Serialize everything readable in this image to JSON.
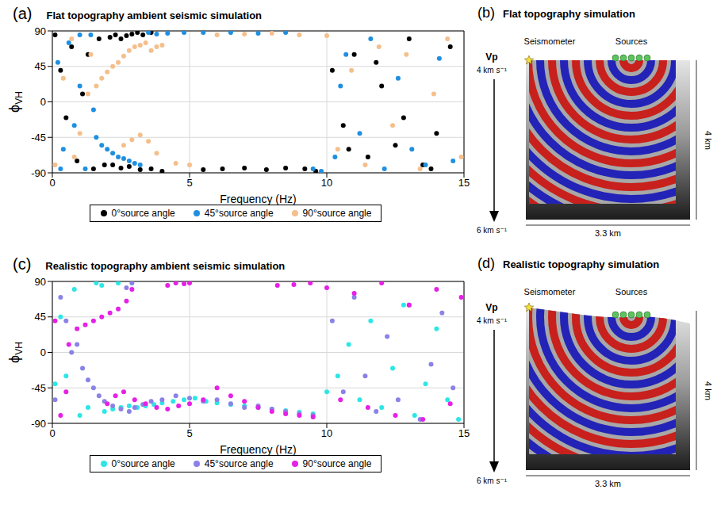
{
  "chart_data": [
    {
      "type": "scatter",
      "panel_label": "(a)",
      "title": "Flat topography ambient seismic simulation",
      "x_label": "Frequency (Hz)",
      "y_label": "ϕ",
      "y_label_subscript": "VH",
      "xlim": [
        0,
        15
      ],
      "xticks": [
        0,
        5,
        10,
        15
      ],
      "ylim": [
        -90,
        90
      ],
      "yticks": [
        -90,
        -45,
        0,
        45,
        90
      ],
      "grid": true,
      "legend": "bottom",
      "series": [
        {
          "name": "0°source angle",
          "color": "#000000",
          "marker": "circle",
          "x": [
            0.1,
            0.3,
            0.5,
            0.7,
            0.9,
            1.1,
            1.3,
            1.5,
            1.7,
            1.9,
            2.1,
            2.3,
            2.5,
            2.7,
            2.9,
            3.1,
            3.3,
            3.6,
            2.2,
            2.5,
            2.8,
            3.2,
            3.6,
            4.0,
            5.5,
            6.2,
            7.0,
            7.8,
            8.5,
            9.2,
            9.6,
            10.2,
            10.6,
            11.0,
            11.5,
            12.0,
            12.5,
            13.0,
            13.5,
            14.0,
            14.5,
            10.8,
            11.8,
            12.8,
            13.8
          ],
          "y": [
            85,
            40,
            -20,
            70,
            -75,
            10,
            60,
            -85,
            80,
            -80,
            82,
            85,
            80,
            84,
            86,
            88,
            85,
            88,
            -80,
            -84,
            -82,
            -86,
            -85,
            -88,
            -86,
            -85,
            -84,
            -86,
            -84,
            -85,
            -88,
            40,
            -30,
            60,
            -70,
            20,
            -55,
            80,
            -80,
            -40,
            70,
            -60,
            50,
            -20,
            -85
          ]
        },
        {
          "name": "45°source angle",
          "color": "#1f8fe0",
          "marker": "circle",
          "x": [
            0.2,
            0.4,
            0.6,
            0.8,
            1.0,
            1.2,
            1.4,
            1.6,
            1.8,
            2.0,
            2.2,
            2.4,
            2.6,
            2.8,
            3.0,
            3.2,
            3.5,
            3.8,
            4.2,
            4.8,
            5.5,
            6.5,
            7.5,
            8.5,
            9.5,
            9.8,
            10.3,
            10.7,
            11.2,
            11.6,
            12.1,
            12.6,
            13.1,
            13.6,
            14.1,
            14.6,
            1.0,
            1.5,
            0.3,
            10.5
          ],
          "y": [
            50,
            -60,
            75,
            -30,
            20,
            -85,
            85,
            -45,
            -55,
            -60,
            -65,
            -70,
            -72,
            -75,
            -78,
            -80,
            88,
            86,
            87,
            88,
            88,
            88,
            87,
            88,
            -85,
            -88,
            -70,
            60,
            -40,
            80,
            -85,
            30,
            -60,
            -80,
            55,
            -75,
            85,
            -10,
            -85,
            20
          ]
        },
        {
          "name": "90°source angle",
          "color": "#f5bf8c",
          "marker": "circle",
          "x": [
            0.1,
            0.4,
            0.7,
            1.0,
            1.3,
            1.6,
            1.8,
            2.0,
            2.2,
            2.4,
            2.6,
            2.8,
            3.0,
            3.2,
            3.4,
            3.6,
            3.8,
            4.0,
            2.6,
            2.9,
            3.2,
            3.5,
            3.8,
            4.5,
            5.0,
            6.0,
            7.0,
            8.0,
            9.0,
            10.0,
            10.4,
            10.9,
            11.4,
            11.9,
            12.4,
            12.9,
            13.4,
            13.9,
            14.4,
            14.9,
            0.8,
            1.4
          ],
          "y": [
            -80,
            30,
            80,
            -40,
            10,
            20,
            30,
            38,
            45,
            50,
            58,
            65,
            70,
            72,
            75,
            65,
            70,
            72,
            -55,
            -48,
            -42,
            -50,
            -65,
            -78,
            -80,
            85,
            86,
            87,
            85,
            84,
            -60,
            40,
            -80,
            70,
            -30,
            60,
            -85,
            10,
            80,
            -70,
            -70,
            60
          ]
        }
      ]
    },
    {
      "type": "scatter",
      "panel_label": "(c)",
      "title": "Realistic topography ambient seismic simulation",
      "x_label": "Frequency (Hz)",
      "y_label": "ϕ",
      "y_label_subscript": "VH",
      "xlim": [
        0,
        15
      ],
      "xticks": [
        0,
        5,
        10,
        15
      ],
      "ylim": [
        -90,
        90
      ],
      "yticks": [
        -90,
        -45,
        0,
        45,
        90
      ],
      "grid": true,
      "legend": "bottom",
      "series": [
        {
          "name": "0°source angle",
          "color": "#2ee6e6",
          "marker": "circle",
          "x": [
            0.1,
            0.3,
            0.5,
            0.8,
            1.0,
            1.3,
            1.6,
            1.9,
            2.2,
            2.5,
            2.8,
            3.1,
            3.4,
            3.7,
            4.0,
            4.4,
            4.8,
            5.2,
            5.6,
            6.0,
            6.5,
            7.0,
            7.5,
            8.0,
            8.5,
            9.0,
            9.5,
            10.0,
            10.4,
            10.8,
            11.2,
            11.6,
            12.0,
            12.4,
            12.8,
            13.2,
            13.6,
            14.0,
            14.4,
            14.8,
            1.8,
            2.4
          ],
          "y": [
            -40,
            45,
            -30,
            80,
            -80,
            -70,
            88,
            -75,
            -72,
            -70,
            -68,
            -70,
            -68,
            -66,
            -64,
            -62,
            -60,
            -58,
            -62,
            -64,
            -66,
            -68,
            -70,
            -72,
            -74,
            -76,
            -78,
            -50,
            -30,
            10,
            -60,
            40,
            -70,
            -20,
            60,
            -80,
            -40,
            30,
            -60,
            -85,
            85,
            88
          ]
        },
        {
          "name": "45°source angle",
          "color": "#8a82e6",
          "marker": "circle",
          "x": [
            0.1,
            0.3,
            0.5,
            0.7,
            0.9,
            1.1,
            1.3,
            1.5,
            1.7,
            1.9,
            2.2,
            2.5,
            2.8,
            3.0,
            3.3,
            3.6,
            4.0,
            4.5,
            5.0,
            5.5,
            6.0,
            6.5,
            7.0,
            7.5,
            8.0,
            8.5,
            9.0,
            9.5,
            10.2,
            10.6,
            11.0,
            11.4,
            11.8,
            12.2,
            12.6,
            13.0,
            13.4,
            13.8,
            14.2,
            14.6,
            2.7,
            2.9
          ],
          "y": [
            -60,
            70,
            40,
            0,
            10,
            -20,
            -35,
            -45,
            -55,
            -62,
            -68,
            -72,
            -75,
            -70,
            -66,
            -62,
            -60,
            -55,
            -58,
            -62,
            -60,
            -65,
            -70,
            -68,
            -72,
            -75,
            -78,
            -80,
            40,
            -50,
            70,
            -30,
            -75,
            20,
            -60,
            60,
            -85,
            -15,
            50,
            -45,
            82,
            88
          ]
        },
        {
          "name": "90°source angle",
          "color": "#e620e6",
          "marker": "circle",
          "x": [
            0.1,
            0.3,
            0.6,
            0.9,
            1.2,
            1.5,
            1.8,
            2.1,
            2.4,
            2.7,
            2.9,
            4.2,
            4.5,
            4.8,
            5.0,
            2.0,
            2.3,
            2.6,
            3.0,
            3.4,
            3.8,
            4.2,
            4.6,
            5.0,
            5.5,
            6.0,
            6.5,
            7.0,
            7.5,
            8.0,
            8.5,
            9.0,
            9.5,
            8.2,
            8.8,
            9.4,
            10.0,
            10.5,
            11.0,
            11.5,
            12.0,
            12.5,
            13.0,
            13.5,
            14.0,
            14.5,
            14.9,
            0.5
          ],
          "y": [
            40,
            -80,
            10,
            30,
            35,
            40,
            45,
            50,
            55,
            65,
            80,
            85,
            88,
            87,
            88,
            -65,
            -55,
            -50,
            -60,
            -65,
            -70,
            -72,
            -68,
            -65,
            -60,
            -45,
            -55,
            -62,
            -70,
            -75,
            -78,
            -80,
            -82,
            85,
            86,
            88,
            82,
            -60,
            75,
            -70,
            88,
            -80,
            60,
            -85,
            80,
            -65,
            70,
            -50
          ]
        }
      ]
    }
  ],
  "simulations": [
    {
      "panel_label": "(b)",
      "title": "Flat topography simulation",
      "vp_label": "Vp",
      "vp_top": "4 km s⁻¹",
      "vp_bottom": "6 km s⁻¹",
      "seismometer": "Seismometer",
      "sources": "Sources",
      "width_label": "3.3 km",
      "depth_label": "4 km"
    },
    {
      "panel_label": "(d)",
      "title": "Realistic topography simulation",
      "vp_label": "Vp",
      "vp_top": "4 km s⁻¹",
      "vp_bottom": "6 km s⁻¹",
      "seismometer": "Seismometer",
      "sources": "Sources",
      "width_label": "3.3 km",
      "depth_label": "4 km"
    }
  ]
}
